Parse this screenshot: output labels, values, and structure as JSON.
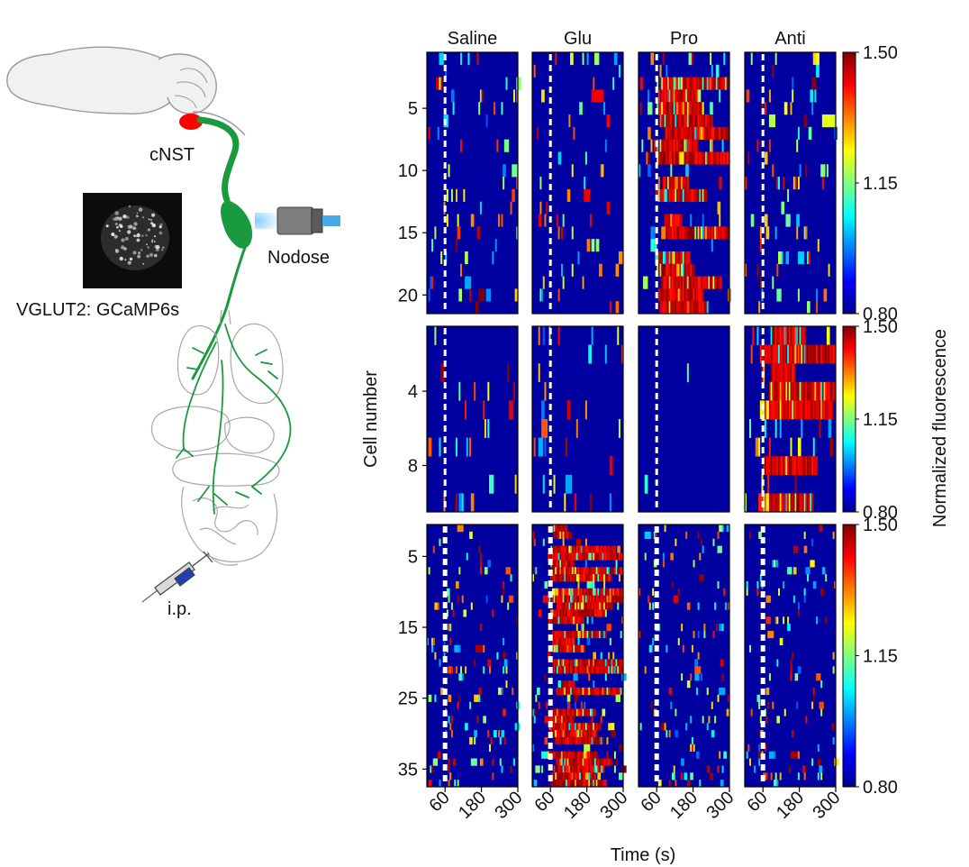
{
  "figure": {
    "labels": {
      "cnst": "cNST",
      "nodose": "Nodose",
      "reporter": "VGLUT2: GCaMP6s",
      "injection": "i.p."
    }
  },
  "chart_data": {
    "type": "heatmap",
    "conditions": [
      "Saline",
      "Glu",
      "Pro",
      "Anti"
    ],
    "xlabel": "Time (s)",
    "ylabel": "Cell number",
    "colorbar_label": "Normalized fluorescence",
    "x_range": [
      0,
      300
    ],
    "x_ticks": [
      60,
      180,
      300
    ],
    "injection_time_s": 60,
    "colormap": "jet",
    "colors": {
      "background": "#0000a0",
      "dashed_line": "#ffffff",
      "jet_stops": [
        "#00008f",
        "#0000ff",
        "#0080ff",
        "#00ffff",
        "#80ff80",
        "#ffff00",
        "#ff8000",
        "#ff0000",
        "#800000"
      ]
    },
    "rows": [
      {
        "cells": 21,
        "y_ticks": [
          5,
          10,
          15,
          20
        ],
        "color_range": [
          0.8,
          1.5
        ],
        "colorbar_ticks": [
          "1.50",
          "1.15",
          "0.80"
        ],
        "responders": {
          "Saline": "sparse",
          "Glu": "sparse",
          "Pro": "strong",
          "Anti": "sparse"
        }
      },
      {
        "cells": 10,
        "y_ticks": [
          4,
          8
        ],
        "color_range": [
          0.8,
          1.5
        ],
        "colorbar_ticks": [
          "1.50",
          "1.15",
          "0.80"
        ],
        "responders": {
          "Saline": "sparse",
          "Glu": "sparse",
          "Pro": "none",
          "Anti": "strong"
        }
      },
      {
        "cells": 37,
        "y_ticks": [
          5,
          15,
          25,
          35
        ],
        "color_range": [
          0.8,
          1.5
        ],
        "colorbar_ticks": [
          "1.50",
          "1.15",
          "0.80"
        ],
        "responders": {
          "Saline": "sparse",
          "Glu": "strong",
          "Pro": "sparse",
          "Anti": "sparse"
        }
      }
    ]
  }
}
